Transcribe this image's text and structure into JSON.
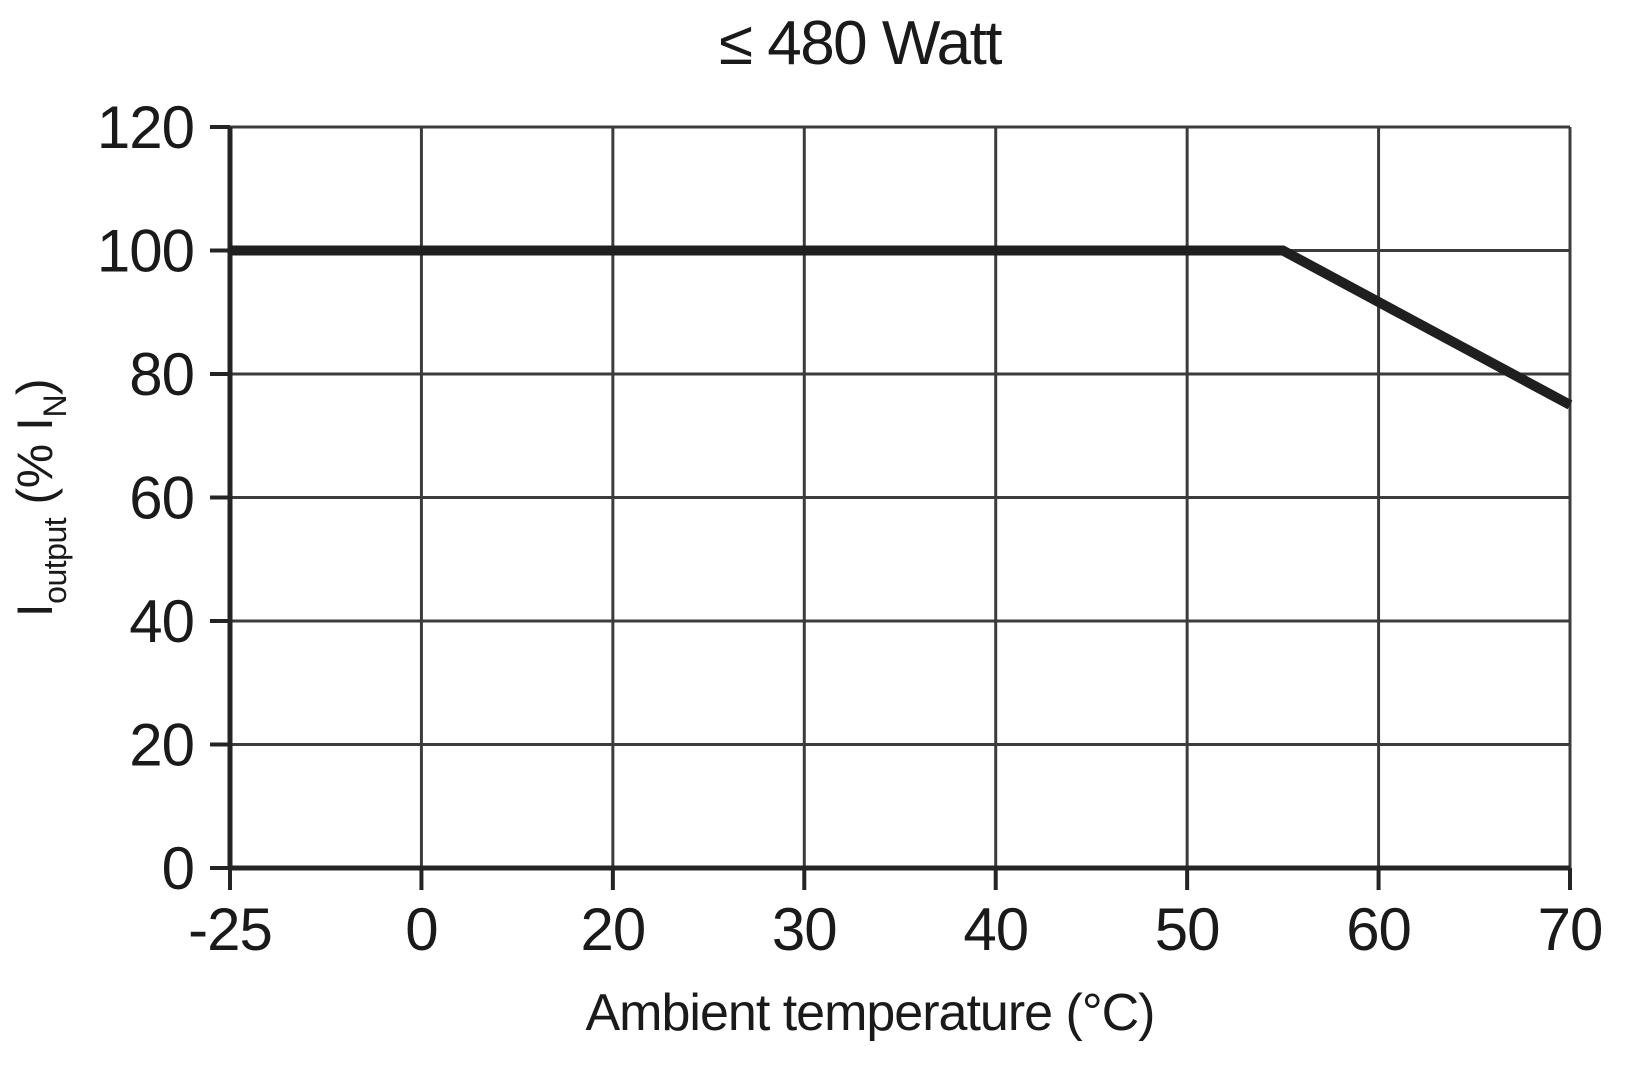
{
  "page": {
    "background": "#ffffff"
  },
  "chart_data": {
    "type": "line",
    "title": "≤ 480 Watt",
    "xlabel": "Ambient temperature (°C)",
    "ylabel": "Ioutput (% IN)",
    "ylabel_parts": {
      "base": "I",
      "sub1": "output",
      "mid": " (% I",
      "sub2": "N",
      "end": ")"
    },
    "x_tick_labels": [
      "-25",
      "0",
      "20",
      "30",
      "40",
      "50",
      "60",
      "70"
    ],
    "x_tick_values": [
      -25,
      0,
      20,
      30,
      40,
      50,
      60,
      70
    ],
    "x_tick_spacing": "equal",
    "y_ticks": [
      0,
      20,
      40,
      60,
      80,
      100,
      120
    ],
    "ylim": [
      0,
      120
    ],
    "grid": true,
    "legend": "none",
    "series": [
      {
        "name": "output-current-vs-ambient-temperature",
        "points": [
          {
            "x": -25,
            "y": 100
          },
          {
            "x": 55,
            "y": 100
          },
          {
            "x": 70,
            "y": 75
          }
        ]
      }
    ],
    "colors": {
      "line": "#1f1f1f",
      "grid": "#3c3c3c",
      "axis": "#242424",
      "text": "#1a1a1a",
      "background": "#ffffff"
    }
  }
}
